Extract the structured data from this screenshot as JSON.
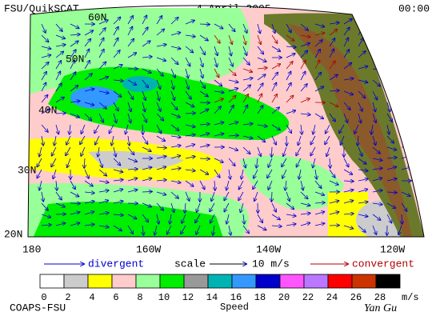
{
  "header": {
    "left": "FSU/QuikSCAT",
    "center": "4 April 2005",
    "right": "00:00"
  },
  "map": {
    "lat_labels": [
      "60N",
      "50N",
      "40N",
      "30N",
      "20N"
    ],
    "lon_labels": [
      "180",
      "160W",
      "140W",
      "120W"
    ]
  },
  "legend": {
    "divergent": "divergent",
    "scale": "scale",
    "scale_value": "10 m/s",
    "convergent": "convergent"
  },
  "colorbar": {
    "colors": [
      "#ffffff",
      "#cccccc",
      "#ffff00",
      "#ffcccc",
      "#99ff99",
      "#00ee00",
      "#999999",
      "#00b3b3",
      "#3399ff",
      "#0000cc",
      "#ff55ff",
      "#bb77ff",
      "#ff0000",
      "#cc3300",
      "#000000"
    ],
    "ticks": [
      "0",
      "2",
      "4",
      "6",
      "8",
      "10",
      "12",
      "14",
      "16",
      "18",
      "20",
      "22",
      "24",
      "26",
      "28"
    ],
    "unit": "m/s",
    "label": "Speed"
  },
  "footer": {
    "left": "COAPS-FSU",
    "right": "Yan Gu"
  }
}
